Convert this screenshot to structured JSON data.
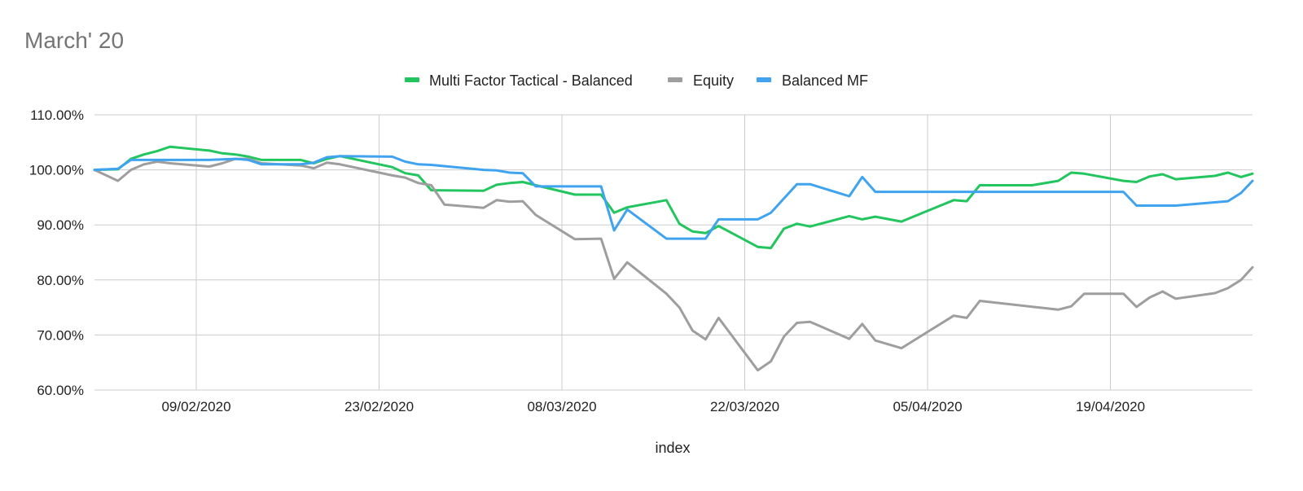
{
  "chart_data": {
    "type": "line",
    "title": "March' 20",
    "xlabel": "index",
    "ylabel": "",
    "ylim": [
      0.6,
      1.1
    ],
    "xlim": [
      "2020-02-01",
      "2020-04-28"
    ],
    "y_ticks": [
      "60.00%",
      "70.00%",
      "80.00%",
      "90.00%",
      "100.00%",
      "110.00%"
    ],
    "x_ticks": [
      "09/02/2020",
      "23/02/2020",
      "08/03/2020",
      "22/03/2020",
      "05/04/2020",
      "19/04/2020"
    ],
    "grid": true,
    "legend_position": "top",
    "series": [
      {
        "name": "Multi Factor Tactical - Balanced",
        "color": "#22c55e",
        "points": [
          [
            "2020-02-01",
            1.0
          ],
          [
            "2020-02-03",
            1.001
          ],
          [
            "2020-02-04",
            1.02
          ],
          [
            "2020-02-05",
            1.028
          ],
          [
            "2020-02-06",
            1.034
          ],
          [
            "2020-02-07",
            1.042
          ],
          [
            "2020-02-10",
            1.035
          ],
          [
            "2020-02-11",
            1.03
          ],
          [
            "2020-02-12",
            1.028
          ],
          [
            "2020-02-13",
            1.024
          ],
          [
            "2020-02-14",
            1.018
          ],
          [
            "2020-02-17",
            1.018
          ],
          [
            "2020-02-18",
            1.012
          ],
          [
            "2020-02-19",
            1.02
          ],
          [
            "2020-02-20",
            1.025
          ],
          [
            "2020-02-24",
            1.005
          ],
          [
            "2020-02-25",
            0.994
          ],
          [
            "2020-02-26",
            0.99
          ],
          [
            "2020-02-27",
            0.963
          ],
          [
            "2020-03-02",
            0.962
          ],
          [
            "2020-03-03",
            0.973
          ],
          [
            "2020-03-04",
            0.976
          ],
          [
            "2020-03-05",
            0.978
          ],
          [
            "2020-03-06",
            0.972
          ],
          [
            "2020-03-09",
            0.955
          ],
          [
            "2020-03-11",
            0.955
          ],
          [
            "2020-03-12",
            0.922
          ],
          [
            "2020-03-13",
            0.932
          ],
          [
            "2020-03-16",
            0.945
          ],
          [
            "2020-03-17",
            0.902
          ],
          [
            "2020-03-18",
            0.888
          ],
          [
            "2020-03-19",
            0.885
          ],
          [
            "2020-03-20",
            0.898
          ],
          [
            "2020-03-23",
            0.86
          ],
          [
            "2020-03-24",
            0.858
          ],
          [
            "2020-03-25",
            0.893
          ],
          [
            "2020-03-26",
            0.902
          ],
          [
            "2020-03-27",
            0.897
          ],
          [
            "2020-03-30",
            0.916
          ],
          [
            "2020-03-31",
            0.91
          ],
          [
            "2020-04-01",
            0.915
          ],
          [
            "2020-04-03",
            0.906
          ],
          [
            "2020-04-07",
            0.945
          ],
          [
            "2020-04-08",
            0.943
          ],
          [
            "2020-04-09",
            0.972
          ],
          [
            "2020-04-13",
            0.972
          ],
          [
            "2020-04-15",
            0.98
          ],
          [
            "2020-04-16",
            0.995
          ],
          [
            "2020-04-17",
            0.993
          ],
          [
            "2020-04-20",
            0.98
          ],
          [
            "2020-04-21",
            0.978
          ],
          [
            "2020-04-22",
            0.988
          ],
          [
            "2020-04-23",
            0.992
          ],
          [
            "2020-04-24",
            0.983
          ],
          [
            "2020-04-27",
            0.989
          ],
          [
            "2020-04-28",
            0.995
          ],
          [
            "2020-04-29",
            0.987
          ],
          [
            "2020-04-30",
            0.993
          ]
        ]
      },
      {
        "name": "Equity",
        "color": "#9e9e9e",
        "points": [
          [
            "2020-02-01",
            1.0
          ],
          [
            "2020-02-03",
            0.98
          ],
          [
            "2020-02-04",
            1.0
          ],
          [
            "2020-02-05",
            1.01
          ],
          [
            "2020-02-06",
            1.015
          ],
          [
            "2020-02-07",
            1.012
          ],
          [
            "2020-02-10",
            1.006
          ],
          [
            "2020-02-11",
            1.012
          ],
          [
            "2020-02-12",
            1.02
          ],
          [
            "2020-02-13",
            1.02
          ],
          [
            "2020-02-14",
            1.012
          ],
          [
            "2020-02-17",
            1.008
          ],
          [
            "2020-02-18",
            1.003
          ],
          [
            "2020-02-19",
            1.013
          ],
          [
            "2020-02-20",
            1.01
          ],
          [
            "2020-02-24",
            0.99
          ],
          [
            "2020-02-25",
            0.986
          ],
          [
            "2020-02-26",
            0.976
          ],
          [
            "2020-02-27",
            0.972
          ],
          [
            "2020-02-28",
            0.937
          ],
          [
            "2020-03-02",
            0.931
          ],
          [
            "2020-03-03",
            0.945
          ],
          [
            "2020-03-04",
            0.942
          ],
          [
            "2020-03-05",
            0.943
          ],
          [
            "2020-03-06",
            0.918
          ],
          [
            "2020-03-09",
            0.874
          ],
          [
            "2020-03-11",
            0.875
          ],
          [
            "2020-03-12",
            0.802
          ],
          [
            "2020-03-13",
            0.832
          ],
          [
            "2020-03-16",
            0.775
          ],
          [
            "2020-03-17",
            0.75
          ],
          [
            "2020-03-18",
            0.708
          ],
          [
            "2020-03-19",
            0.692
          ],
          [
            "2020-03-20",
            0.731
          ],
          [
            "2020-03-23",
            0.636
          ],
          [
            "2020-03-24",
            0.652
          ],
          [
            "2020-03-25",
            0.697
          ],
          [
            "2020-03-26",
            0.722
          ],
          [
            "2020-03-27",
            0.724
          ],
          [
            "2020-03-30",
            0.693
          ],
          [
            "2020-03-31",
            0.72
          ],
          [
            "2020-04-01",
            0.69
          ],
          [
            "2020-04-03",
            0.676
          ],
          [
            "2020-04-07",
            0.735
          ],
          [
            "2020-04-08",
            0.731
          ],
          [
            "2020-04-09",
            0.762
          ],
          [
            "2020-04-15",
            0.746
          ],
          [
            "2020-04-16",
            0.752
          ],
          [
            "2020-04-17",
            0.775
          ],
          [
            "2020-04-20",
            0.775
          ],
          [
            "2020-04-21",
            0.751
          ],
          [
            "2020-04-22",
            0.768
          ],
          [
            "2020-04-23",
            0.779
          ],
          [
            "2020-04-24",
            0.766
          ],
          [
            "2020-04-27",
            0.776
          ],
          [
            "2020-04-28",
            0.785
          ],
          [
            "2020-04-29",
            0.8
          ],
          [
            "2020-04-30",
            0.823
          ]
        ]
      },
      {
        "name": "Balanced MF",
        "color": "#3fa3ef",
        "points": [
          [
            "2020-02-01",
            1.0
          ],
          [
            "2020-02-03",
            1.002
          ],
          [
            "2020-02-04",
            1.018
          ],
          [
            "2020-02-10",
            1.018
          ],
          [
            "2020-02-12",
            1.02
          ],
          [
            "2020-02-13",
            1.018
          ],
          [
            "2020-02-14",
            1.01
          ],
          [
            "2020-02-17",
            1.01
          ],
          [
            "2020-02-18",
            1.013
          ],
          [
            "2020-02-19",
            1.023
          ],
          [
            "2020-02-20",
            1.025
          ],
          [
            "2020-02-24",
            1.024
          ],
          [
            "2020-02-25",
            1.015
          ],
          [
            "2020-02-26",
            1.01
          ],
          [
            "2020-02-27",
            1.009
          ],
          [
            "2020-03-02",
            1.0
          ],
          [
            "2020-03-03",
            0.999
          ],
          [
            "2020-03-04",
            0.995
          ],
          [
            "2020-03-05",
            0.994
          ],
          [
            "2020-03-06",
            0.97
          ],
          [
            "2020-03-11",
            0.97
          ],
          [
            "2020-03-12",
            0.89
          ],
          [
            "2020-03-13",
            0.928
          ],
          [
            "2020-03-16",
            0.875
          ],
          [
            "2020-03-19",
            0.875
          ],
          [
            "2020-03-20",
            0.91
          ],
          [
            "2020-03-23",
            0.91
          ],
          [
            "2020-03-24",
            0.922
          ],
          [
            "2020-03-25",
            0.948
          ],
          [
            "2020-03-26",
            0.974
          ],
          [
            "2020-03-27",
            0.974
          ],
          [
            "2020-03-30",
            0.952
          ],
          [
            "2020-03-31",
            0.987
          ],
          [
            "2020-04-01",
            0.96
          ],
          [
            "2020-04-20",
            0.96
          ],
          [
            "2020-04-21",
            0.935
          ],
          [
            "2020-04-24",
            0.935
          ],
          [
            "2020-04-28",
            0.943
          ],
          [
            "2020-04-29",
            0.958
          ],
          [
            "2020-04-30",
            0.98
          ]
        ]
      }
    ]
  }
}
